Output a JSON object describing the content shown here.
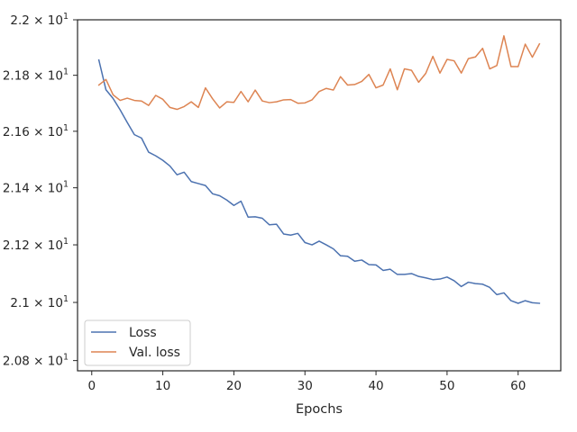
{
  "chart_data": {
    "type": "line",
    "title": "",
    "xlabel": "Epochs",
    "ylabel": "",
    "xlim": [
      -2,
      66
    ],
    "ylim": [
      20.765,
      22.0
    ],
    "x_ticks": [
      0,
      10,
      20,
      30,
      40,
      50,
      60
    ],
    "x_tick_labels": [
      "0",
      "10",
      "20",
      "30",
      "40",
      "50",
      "60"
    ],
    "y_ticks": [
      20.8,
      21.0,
      21.2,
      21.4,
      21.6,
      21.8,
      22.0
    ],
    "y_tick_labels": [
      {
        "mant": "2.08",
        "exp": "1"
      },
      {
        "mant": "2.1",
        "exp": "1"
      },
      {
        "mant": "2.12",
        "exp": "1"
      },
      {
        "mant": "2.14",
        "exp": "1"
      },
      {
        "mant": "2.16",
        "exp": "1"
      },
      {
        "mant": "2.18",
        "exp": "1"
      },
      {
        "mant": "2.2",
        "exp": "1"
      }
    ],
    "y_scale": "log",
    "grid": false,
    "legend_position": "lower-left",
    "x": [
      1,
      2,
      3,
      4,
      5,
      6,
      7,
      8,
      9,
      10,
      11,
      12,
      13,
      14,
      15,
      16,
      17,
      18,
      19,
      20,
      21,
      22,
      23,
      24,
      25,
      26,
      27,
      28,
      29,
      30,
      31,
      32,
      33,
      34,
      35,
      36,
      37,
      38,
      39,
      40,
      41,
      42,
      43,
      44,
      45,
      46,
      47,
      48,
      49,
      50,
      51,
      52,
      53,
      54,
      55,
      56,
      57,
      58,
      59,
      60,
      61,
      62,
      63
    ],
    "series": [
      {
        "name": "Loss",
        "color": "#4c72b0",
        "values": [
          21.855,
          21.748,
          21.717,
          21.676,
          21.631,
          21.588,
          21.576,
          21.526,
          21.513,
          21.497,
          21.477,
          21.446,
          21.455,
          21.422,
          21.415,
          21.408,
          21.379,
          21.372,
          21.357,
          21.338,
          21.353,
          21.297,
          21.298,
          21.293,
          21.27,
          21.272,
          21.238,
          21.234,
          21.24,
          21.208,
          21.2,
          21.213,
          21.2,
          21.186,
          21.162,
          21.16,
          21.143,
          21.147,
          21.131,
          21.13,
          21.111,
          21.115,
          21.097,
          21.097,
          21.1,
          21.09,
          21.085,
          21.079,
          21.081,
          21.088,
          21.075,
          21.055,
          21.07,
          21.065,
          21.063,
          21.052,
          21.027,
          21.033,
          21.006,
          20.997,
          21.006,
          20.999,
          20.997
        ]
      },
      {
        "name": "Val. loss",
        "color": "#dd8452",
        "values": [
          21.765,
          21.785,
          21.73,
          21.71,
          21.718,
          21.71,
          21.708,
          21.692,
          21.728,
          21.714,
          21.685,
          21.678,
          21.688,
          21.705,
          21.685,
          21.755,
          21.716,
          21.683,
          21.705,
          21.703,
          21.742,
          21.705,
          21.747,
          21.708,
          21.702,
          21.705,
          21.712,
          21.713,
          21.7,
          21.701,
          21.712,
          21.742,
          21.753,
          21.747,
          21.795,
          21.765,
          21.767,
          21.778,
          21.803,
          21.755,
          21.765,
          21.823,
          21.748,
          21.823,
          21.818,
          21.775,
          21.807,
          21.868,
          21.808,
          21.857,
          21.852,
          21.808,
          21.86,
          21.866,
          21.897,
          21.823,
          21.835,
          21.942,
          21.831,
          21.831,
          21.912,
          21.865,
          21.913
        ]
      }
    ]
  }
}
